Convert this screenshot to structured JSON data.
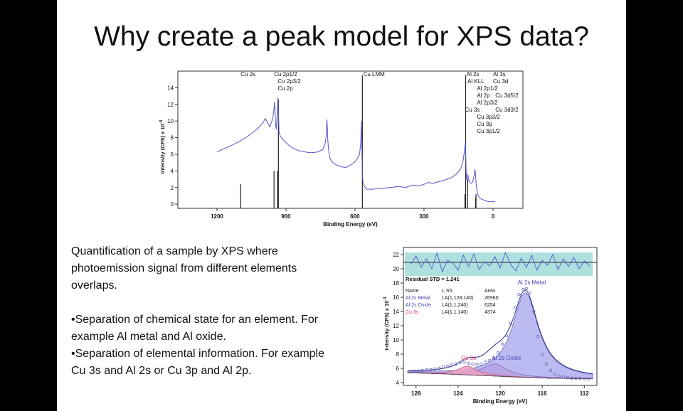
{
  "title": "Why create a peak model for XPS data?",
  "bullets": {
    "intro": [
      "Quantification of a sample by XPS where",
      "photoemission signal from different elements",
      "overlaps."
    ],
    "item1": [
      "•Separation of chemical state for an element. For",
      "example Al metal and Al oxide."
    ],
    "item2": [
      "•Separation of elemental information. For example",
      "Cu 3s and Al 2s or Cu 3p and Al 2p."
    ]
  },
  "colors": {
    "spectrum": "#5555cc",
    "metal_fill": "#aaaaee",
    "oxide_fill": "#b8a0e0",
    "cu3s_fill": "#f0a0c0",
    "residual_band": "#aee0e0",
    "cu3s_label": "#cc3366",
    "name_label": "#4444bb"
  },
  "chart_data": [
    {
      "type": "line",
      "xlabel": "Binding Energy (eV)",
      "ylabel": "Intensity (CPS) x 10",
      "ylabel_exponent": "-4",
      "xlim": [
        1370,
        -130
      ],
      "ylim": [
        -0.5,
        16
      ],
      "x_ticks": [
        "1200",
        "900",
        "600",
        "300",
        "0"
      ],
      "x_tick_values": [
        1200,
        900,
        600,
        300,
        0
      ],
      "y_ticks": [
        "0",
        "2",
        "4",
        "6",
        "8",
        "10",
        "12",
        "14"
      ],
      "y_tick_values": [
        0,
        2,
        4,
        6,
        8,
        10,
        12,
        14
      ],
      "series": [
        {
          "x": [
            1200,
            1150,
            1120,
            1100,
            1080,
            1060,
            1040,
            1020,
            1000,
            990,
            980,
            970,
            960,
            955,
            952,
            950,
            947,
            945,
            942,
            940,
            937,
            935,
            932,
            930,
            925,
            920,
            900,
            880,
            860,
            840,
            820,
            800,
            780,
            760,
            740,
            730,
            725,
            722,
            720,
            718,
            715,
            710,
            700,
            680,
            660,
            640,
            620,
            600,
            590,
            580,
            575,
            572,
            570,
            568,
            565,
            560,
            555,
            550,
            540,
            520,
            500,
            480,
            450,
            420,
            400,
            380,
            360,
            340,
            320,
            300,
            280,
            260,
            240,
            220,
            200,
            180,
            160,
            150,
            140,
            130,
            125,
            120,
            118,
            116,
            114,
            112,
            110,
            108,
            105,
            100,
            95,
            90,
            85,
            80,
            78,
            76,
            74,
            72,
            70,
            68,
            65,
            60,
            50,
            40,
            30,
            20,
            10,
            0,
            -10
          ],
          "y": [
            6.3,
            6.9,
            7.3,
            7.6,
            7.9,
            8.3,
            8.7,
            9.2,
            9.8,
            10.3,
            9.8,
            9.3,
            10.1,
            10.8,
            11.5,
            12.3,
            10.8,
            9.5,
            9.0,
            10.0,
            11.3,
            12.8,
            10.4,
            8.6,
            8.2,
            8.0,
            7.4,
            6.9,
            6.6,
            6.4,
            6.3,
            6.2,
            6.2,
            6.3,
            6.6,
            7.2,
            8.2,
            10.2,
            9.0,
            7.6,
            6.6,
            5.6,
            5.1,
            4.7,
            4.5,
            4.4,
            4.7,
            5.1,
            5.5,
            6.0,
            7.5,
            10.0,
            6.2,
            3.5,
            2.6,
            2.2,
            2.0,
            1.8,
            1.8,
            1.8,
            1.9,
            1.9,
            2.0,
            2.1,
            2.1,
            2.0,
            2.2,
            2.3,
            2.2,
            2.4,
            2.6,
            2.5,
            2.7,
            2.8,
            3.0,
            3.2,
            3.6,
            3.9,
            4.3,
            5.2,
            6.2,
            7.4,
            5.2,
            3.2,
            3.0,
            3.2,
            3.6,
            3.3,
            2.8,
            2.6,
            2.5,
            2.6,
            3.0,
            3.8,
            4.2,
            3.6,
            2.7,
            2.1,
            1.7,
            1.4,
            1.1,
            0.8,
            0.6,
            0.5,
            0.4,
            0.3,
            0.3,
            0.3,
            0.3
          ]
        }
      ],
      "reference_lines": [
        {
          "label": "Cu 2s",
          "x": 1097,
          "y": 2.4
        },
        {
          "label": "Cu 2p1/2",
          "x": 952,
          "y": 4.0
        },
        {
          "label": "Cu 2p3/2",
          "x": 933,
          "y": 12.6
        },
        {
          "label": "Cu 2p",
          "x": 937,
          "y": 4.0
        },
        {
          "label": "Cu LMM",
          "x": 568,
          "y": 15.5
        },
        {
          "label": "Al 2s",
          "x": 119,
          "y": 15.5
        },
        {
          "label": "Al KLL",
          "x": 110,
          "y": 3.0
        },
        {
          "label": "Cu 3s",
          "x": 122,
          "y": 1.2
        },
        {
          "label": "Al 2p",
          "x": 74,
          "y": 1.2
        },
        {
          "label": "Cu 3p",
          "x": 76,
          "y": 0.8
        }
      ],
      "peak_labels": [
        {
          "text": "Cu 2s",
          "x": 1097,
          "row": 0
        },
        {
          "text": "Cu 2p1/2",
          "x": 952,
          "row": 0
        },
        {
          "text": "Cu 2p3/2",
          "x": 936,
          "row": 1
        },
        {
          "text": "Cu 2p",
          "x": 936,
          "row": 2
        },
        {
          "text": "Cu LMM",
          "x": 564,
          "row": 0
        },
        {
          "text": "Al 2s",
          "x": 115,
          "row": 0
        },
        {
          "text": "Al 3s",
          "x": 0,
          "row": 0
        },
        {
          "text": "Al KLL",
          "x": 111,
          "row": 1
        },
        {
          "text": "Cu 3d",
          "x": 0,
          "row": 1
        },
        {
          "text": "Al 2p1/2",
          "x": 70,
          "row": 2
        },
        {
          "text": "Al 2p",
          "x": 70,
          "row": 3
        },
        {
          "text": "Cu 3d5/2",
          "x": -10,
          "row": 3
        },
        {
          "text": "Al 2p3/2",
          "x": 70,
          "row": 4
        },
        {
          "text": "Cu 3s",
          "x": 122,
          "row": 5
        },
        {
          "text": "Cu 3d3/2",
          "x": -10,
          "row": 5
        },
        {
          "text": "Cu 3p3/2",
          "x": 70,
          "row": 6
        },
        {
          "text": "Cu 3p",
          "x": 70,
          "row": 7
        },
        {
          "text": "Cu 3p1/2",
          "x": 70,
          "row": 8
        }
      ]
    },
    {
      "type": "area",
      "xlabel": "Binding Energy (eV)",
      "ylabel": "Intensity (CPS) x 10",
      "ylabel_exponent": "-3",
      "xlim": [
        129.2,
        110.8
      ],
      "ylim": [
        3.6,
        23
      ],
      "x_ticks": [
        "128",
        "124",
        "120",
        "116",
        "112"
      ],
      "x_tick_values": [
        128,
        124,
        120,
        116,
        112
      ],
      "y_ticks": [
        "4",
        "6",
        "8",
        "10",
        "12",
        "14",
        "16",
        "18",
        "20",
        "22"
      ],
      "y_tick_values": [
        4,
        6,
        8,
        10,
        12,
        14,
        16,
        18,
        20,
        22
      ],
      "residual_std_label": "Residual STD = 1.241",
      "residual_band": [
        19.0,
        22.3
      ],
      "residual_center": 20.9,
      "residual": {
        "x": [
          128.5,
          128,
          127.5,
          127,
          126.5,
          126,
          125.5,
          125,
          124.5,
          124,
          123.5,
          123,
          122.5,
          122,
          121.5,
          121,
          120.5,
          120,
          119.5,
          119,
          118.5,
          118,
          117.5,
          117,
          116.5,
          116,
          115.5,
          115,
          114.5,
          114,
          113.5,
          113,
          112.5,
          112,
          111.5
        ],
        "y": [
          20.6,
          21.8,
          20.2,
          21.4,
          20.0,
          22.2,
          19.6,
          21.2,
          20.8,
          19.8,
          21.9,
          20.3,
          22.1,
          19.9,
          21.0,
          20.4,
          21.7,
          20.1,
          22.3,
          20.6,
          19.7,
          21.5,
          20.2,
          21.9,
          19.8,
          21.2,
          20.5,
          22.0,
          19.9,
          21.4,
          20.3,
          21.6,
          20.0,
          21.1,
          20.4
        ]
      },
      "table": {
        "headers": [
          "Name",
          "L.Sh.",
          "Area"
        ],
        "rows": [
          {
            "name": "Al 2s Metal",
            "lsh": "LA(1,128,140)",
            "area": "26960",
            "color": "#4444bb"
          },
          {
            "name": "Al 2s Oxide",
            "lsh": "LA(1,1,240)",
            "area": "6254",
            "color": "#4444bb"
          },
          {
            "name": "Cu 3s",
            "lsh": "LA(1,1,140)",
            "area": "4374",
            "color": "#cc3366"
          }
        ]
      },
      "components": [
        {
          "name": "Al 2s Metal",
          "label": "Al 2s Metal",
          "center": 117.6,
          "height": 11.9,
          "width": 1.5,
          "label_at": [
            117.0,
            17.8
          ]
        },
        {
          "name": "Al 2s Oxide",
          "label": "Al 2s Oxide",
          "center": 120.5,
          "height": 1.7,
          "width": 1.4,
          "label_at": [
            119.4,
            7.2
          ]
        },
        {
          "name": "Cu 3s",
          "label": "Cu 3s",
          "center": 123.1,
          "height": 1.2,
          "width": 1.1,
          "label_at": [
            123.0,
            7.2
          ]
        }
      ],
      "background": {
        "x": [
          129,
          125,
          121,
          118,
          115,
          111
        ],
        "y": [
          5.4,
          5.2,
          4.95,
          4.75,
          4.6,
          4.55
        ]
      },
      "data_points": {
        "x": [
          128.6,
          128.2,
          127.8,
          127.4,
          127.0,
          126.6,
          126.2,
          125.8,
          125.4,
          125.0,
          124.6,
          124.2,
          123.8,
          123.4,
          123.0,
          122.6,
          122.2,
          121.8,
          121.4,
          121.0,
          120.6,
          120.2,
          119.8,
          119.4,
          119.0,
          118.6,
          118.2,
          117.8,
          117.5,
          117.2,
          116.8,
          116.4,
          116.0,
          115.6,
          115.2,
          114.8,
          114.4,
          114.0,
          113.6,
          113.2,
          112.8,
          112.4,
          112.0,
          111.6
        ],
        "y": [
          5.5,
          5.6,
          5.6,
          5.7,
          5.8,
          5.8,
          5.9,
          6.0,
          6.2,
          6.3,
          6.5,
          6.6,
          6.8,
          6.9,
          6.7,
          6.6,
          6.5,
          6.6,
          6.9,
          7.1,
          7.4,
          8.2,
          9.4,
          10.6,
          12.3,
          14.5,
          16.4,
          17.1,
          17.2,
          16.6,
          14.0,
          10.5,
          7.9,
          6.6,
          5.7,
          5.2,
          4.9,
          4.8,
          4.7,
          4.6,
          4.6,
          4.6,
          4.5,
          4.5
        ]
      }
    }
  ]
}
